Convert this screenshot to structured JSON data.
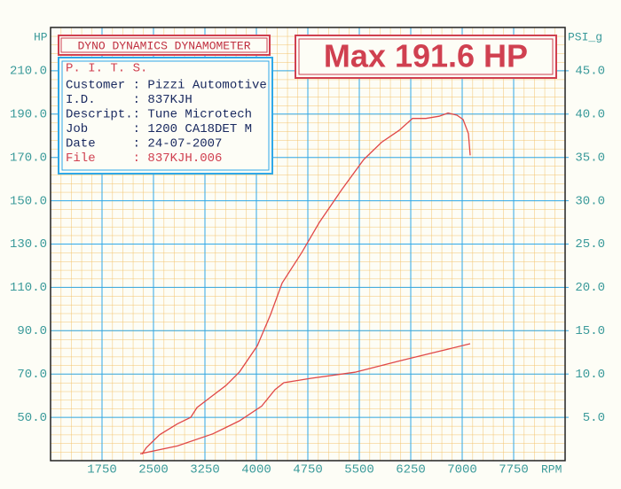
{
  "chart_data": {
    "type": "line",
    "header": "DYNO DYNAMICS DYNAMOMETER",
    "headline": "Max 191.6 HP",
    "ylabel": "HP",
    "y2label": "PSI_g",
    "xlabel": "RPM",
    "info": {
      "heading": "P. I. T. S.",
      "rows": [
        "Customer : Pizzi Automotive",
        "I.D.     : 837KJH",
        "Descript.: Tune Microtech",
        "Job      : 1200 CA18DET M",
        "Date     : 24-07-2007"
      ],
      "file": "File     : 837KJH.006"
    },
    "xlim": [
      1000,
      8500
    ],
    "xticks": [
      1750,
      2500,
      3250,
      4000,
      4750,
      5500,
      6250,
      7000,
      7750
    ],
    "ylim": [
      30,
      230
    ],
    "yticks": [
      {
        "value": 50,
        "label": "50.0"
      },
      {
        "value": 70,
        "label": "70.0"
      },
      {
        "value": 90,
        "label": "90.0"
      },
      {
        "value": 110,
        "label": "110.0"
      },
      {
        "value": 130,
        "label": "130.0"
      },
      {
        "value": 150,
        "label": "150.0"
      },
      {
        "value": 170,
        "label": "170.0"
      },
      {
        "value": 190,
        "label": "190.0"
      },
      {
        "value": 210,
        "label": "210.0"
      }
    ],
    "y2lim": [
      0,
      50
    ],
    "y2ticks": [
      {
        "value": 5,
        "label": "5.0"
      },
      {
        "value": 10,
        "label": "10.0"
      },
      {
        "value": 15,
        "label": "15.0"
      },
      {
        "value": 20,
        "label": "20.0"
      },
      {
        "value": 25,
        "label": "25.0"
      },
      {
        "value": 30,
        "label": "30.0"
      },
      {
        "value": 35,
        "label": "35.0"
      },
      {
        "value": 40,
        "label": "40.0"
      },
      {
        "value": 45,
        "label": "45.0"
      }
    ],
    "grid": true,
    "series": [
      {
        "color": "#e04848",
        "x": [
          2332,
          2397,
          2590,
          2849,
          3043,
          3134,
          3302,
          3560,
          3754,
          4013,
          4207,
          4375,
          4660,
          4918,
          5241,
          5565,
          5824,
          6082,
          6276,
          6470,
          6664,
          6793,
          6923,
          7013,
          7091,
          7117
        ],
        "values": [
          33,
          36,
          42,
          47,
          50,
          54.5,
          58.6,
          64.8,
          71,
          83,
          97.5,
          112,
          126,
          140,
          155,
          169,
          177,
          182.5,
          188,
          188,
          189,
          190.5,
          189.5,
          187.5,
          181,
          171
        ]
      },
      {
        "color": "#e04848",
        "axis": "y2",
        "x": [
          2306,
          2849,
          3366,
          3754,
          4078,
          4272,
          4401,
          4789,
          5435,
          6082,
          6599,
          7117
        ],
        "values": [
          0.8,
          1.7,
          3.1,
          4.6,
          6.3,
          8.2,
          9.0,
          9.5,
          10.2,
          11.5,
          12.5,
          13.5
        ]
      }
    ]
  }
}
